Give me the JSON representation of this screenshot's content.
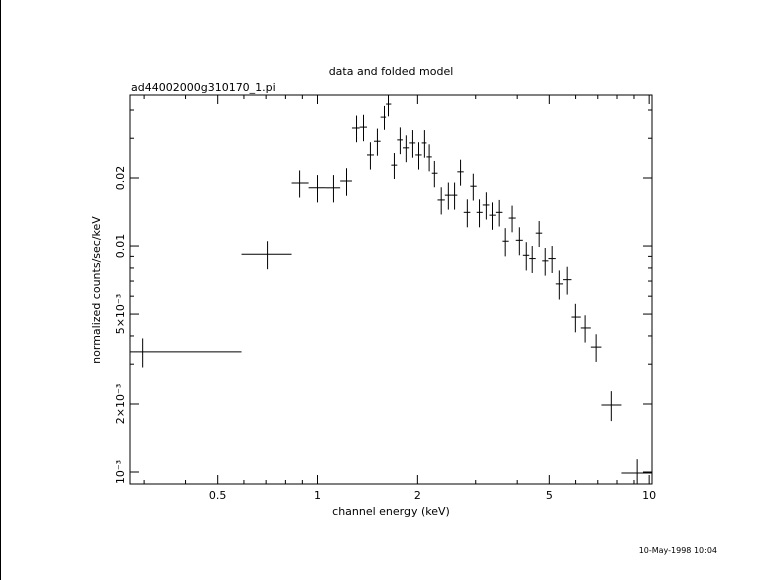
{
  "chart_data": {
    "type": "scatter",
    "title": "data and folded model",
    "subtitle": "ad44002000g310170_1.pi",
    "x_label": "channel energy (keV)",
    "y_label": "normalized counts/sec/keV",
    "date": "10-May-1998 10:04",
    "log_x": true,
    "log_y": true,
    "color": "#000000",
    "xlim": [
      0.272,
      10.2
    ],
    "ylim": [
      0.000885,
      0.0466
    ],
    "xticks": [
      0.5,
      1,
      2,
      5,
      10
    ],
    "xminor_ticks": [
      0.3,
      0.4,
      0.6,
      0.7,
      0.8,
      0.9,
      3,
      4,
      6,
      7,
      8,
      9
    ],
    "yticks": [
      {
        "value": 0.001,
        "label": "10⁻³"
      },
      {
        "value": 0.002,
        "label": "2×10⁻³"
      },
      {
        "value": 0.005,
        "label": "5×10⁻³"
      },
      0.01,
      0.02
    ],
    "yminor_ticks": [
      0.003,
      0.004,
      0.006,
      0.007,
      0.008,
      0.009,
      0.03,
      0.04
    ],
    "x": [
      0.297,
      0.707,
      0.883,
      1.0,
      1.117,
      1.223,
      1.311,
      1.376,
      1.444,
      1.516,
      1.592,
      1.637,
      1.706,
      1.778,
      1.853,
      1.933,
      2.016,
      2.1,
      2.17,
      2.25,
      2.36,
      2.48,
      2.59,
      2.7,
      2.83,
      2.95,
      3.08,
      3.23,
      3.37,
      3.53,
      3.68,
      3.86,
      4.06,
      4.26,
      4.44,
      4.66,
      4.86,
      5.1,
      5.36,
      5.66,
      5.99,
      6.41,
      6.92,
      7.69,
      9.2
    ],
    "bin_edges": [
      0.272,
      0.59,
      0.835,
      0.94,
      1.06,
      1.17,
      1.27,
      1.34,
      1.41,
      1.48,
      1.55,
      1.61,
      1.67,
      1.74,
      1.81,
      1.89,
      1.97,
      2.06,
      2.13,
      2.21,
      2.3,
      2.42,
      2.53,
      2.64,
      2.76,
      2.89,
      3.02,
      3.15,
      3.3,
      3.45,
      3.61,
      3.77,
      3.96,
      4.16,
      4.35,
      4.55,
      4.76,
      4.97,
      5.23,
      5.5,
      5.83,
      6.22,
      6.67,
      7.18,
      8.25,
      10.2
    ],
    "values": [
      0.0034,
      0.0092,
      0.019,
      0.0181,
      0.0181,
      0.0194,
      0.0333,
      0.0336,
      0.0253,
      0.0291,
      0.0372,
      0.0425,
      0.0228,
      0.0295,
      0.0272,
      0.0286,
      0.0253,
      0.0286,
      0.0248,
      0.021,
      0.016,
      0.0168,
      0.0168,
      0.0213,
      0.0141,
      0.0184,
      0.0141,
      0.0152,
      0.0137,
      0.0141,
      0.0105,
      0.0133,
      0.0106,
      0.0091,
      0.0088,
      0.0114,
      0.0086,
      0.0088,
      0.0068,
      0.0071,
      0.00485,
      0.00434,
      0.00357,
      0.00198,
      0.00099
    ],
    "errors": [
      0.0005,
      0.0013,
      0.0026,
      0.0025,
      0.0025,
      0.0027,
      0.0045,
      0.0045,
      0.0035,
      0.004,
      0.0045,
      0.005,
      0.003,
      0.004,
      0.0037,
      0.004,
      0.0035,
      0.004,
      0.0034,
      0.0028,
      0.0022,
      0.0023,
      0.0023,
      0.0028,
      0.002,
      0.0025,
      0.002,
      0.0021,
      0.0019,
      0.0019,
      0.0015,
      0.0018,
      0.0015,
      0.0013,
      0.0012,
      0.0015,
      0.0012,
      0.0012,
      0.001,
      0.001,
      0.0007,
      0.0006,
      0.0005,
      0.0003,
      0.00015
    ]
  }
}
